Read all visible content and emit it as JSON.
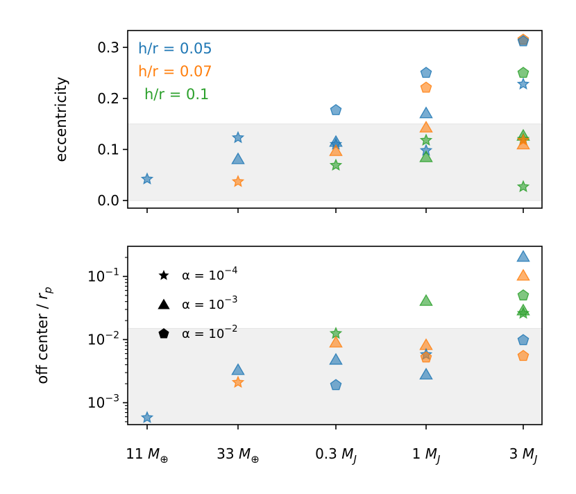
{
  "colors": {
    "blue": "#1f77b4",
    "orange": "#ff7f0e",
    "green": "#2ca02c",
    "band": "#f0f0f0"
  },
  "chart_data": [
    {
      "type": "scatter",
      "ylabel": "eccentricity",
      "yscale": "linear",
      "ylim": [
        -0.015,
        0.333
      ],
      "shaded_band": [
        0,
        0.15
      ],
      "yticks": [
        {
          "v": 0.0,
          "label": "0.0"
        },
        {
          "v": 0.1,
          "label": "0.1"
        },
        {
          "v": 0.2,
          "label": "0.2"
        },
        {
          "v": 0.3,
          "label": "0.3"
        }
      ],
      "color_legend": [
        {
          "text": "h/r = 0.05",
          "color": "#1f77b4"
        },
        {
          "text": "h/r = 0.07",
          "color": "#ff7f0e"
        },
        {
          "text": "h/r = 0.1",
          "color": "#2ca02c"
        }
      ],
      "points": [
        {
          "x": 0,
          "hr": 0.05,
          "alpha": "1e-4",
          "y": 0.042
        },
        {
          "x": 1,
          "hr": 0.05,
          "alpha": "1e-4",
          "y": 0.123
        },
        {
          "x": 1,
          "hr": 0.05,
          "alpha": "1e-3",
          "y": 0.081
        },
        {
          "x": 1,
          "hr": 0.07,
          "alpha": "1e-4",
          "y": 0.037
        },
        {
          "x": 2,
          "hr": 0.05,
          "alpha": "1e-2",
          "y": 0.177
        },
        {
          "x": 2,
          "hr": 0.05,
          "alpha": "1e-3",
          "y": 0.115
        },
        {
          "x": 2,
          "hr": 0.05,
          "alpha": "1e-4",
          "y": 0.11
        },
        {
          "x": 2,
          "hr": 0.07,
          "alpha": "1e-3",
          "y": 0.097
        },
        {
          "x": 2,
          "hr": 0.1,
          "alpha": "1e-4",
          "y": 0.069
        },
        {
          "x": 3,
          "hr": 0.05,
          "alpha": "1e-2",
          "y": 0.25
        },
        {
          "x": 3,
          "hr": 0.07,
          "alpha": "1e-2",
          "y": 0.221
        },
        {
          "x": 3,
          "hr": 0.05,
          "alpha": "1e-3",
          "y": 0.171
        },
        {
          "x": 3,
          "hr": 0.07,
          "alpha": "1e-3",
          "y": 0.143
        },
        {
          "x": 3,
          "hr": 0.1,
          "alpha": "1e-4",
          "y": 0.118
        },
        {
          "x": 3,
          "hr": 0.05,
          "alpha": "1e-4",
          "y": 0.098
        },
        {
          "x": 3,
          "hr": 0.1,
          "alpha": "1e-3",
          "y": 0.085
        },
        {
          "x": 4,
          "hr": 0.07,
          "alpha": "1e-2",
          "y": 0.315
        },
        {
          "x": 4,
          "hr": 0.05,
          "alpha": "1e-2",
          "y": 0.312
        },
        {
          "x": 4,
          "hr": 0.1,
          "alpha": "1e-2",
          "y": 0.25
        },
        {
          "x": 4,
          "hr": 0.05,
          "alpha": "1e-4",
          "y": 0.228
        },
        {
          "x": 4,
          "hr": 0.1,
          "alpha": "1e-3",
          "y": 0.127
        },
        {
          "x": 4,
          "hr": 0.1,
          "alpha": "1e-4",
          "y": 0.12
        },
        {
          "x": 4,
          "hr": 0.07,
          "alpha": "1e-4",
          "y": 0.118
        },
        {
          "x": 4,
          "hr": 0.07,
          "alpha": "1e-3",
          "y": 0.11
        },
        {
          "x": 4,
          "hr": 0.1,
          "alpha": "1e-4",
          "y": 0.027
        }
      ]
    },
    {
      "type": "scatter",
      "ylabel_main": "off center / ",
      "ylabel_var": "r",
      "ylabel_sub": "p",
      "yscale": "log",
      "ylim": [
        0.00045,
        0.3
      ],
      "shaded_band": [
        0.00045,
        0.015
      ],
      "yticks": [
        {
          "v": 0.001,
          "base": "10",
          "exp": "−3"
        },
        {
          "v": 0.01,
          "base": "10",
          "exp": "−2"
        },
        {
          "v": 0.1,
          "base": "10",
          "exp": "−1"
        }
      ],
      "marker_legend": [
        {
          "marker": "star",
          "prefix": "α = 10",
          "exp": "−4"
        },
        {
          "marker": "triangle",
          "prefix": "α = 10",
          "exp": "−3"
        },
        {
          "marker": "pentagon",
          "prefix": "α = 10",
          "exp": "−2"
        }
      ],
      "points": [
        {
          "x": 0,
          "hr": 0.05,
          "alpha": "1e-4",
          "y": 0.00058
        },
        {
          "x": 1,
          "hr": 0.05,
          "alpha": "1e-3",
          "y": 0.0033
        },
        {
          "x": 1,
          "hr": 0.07,
          "alpha": "1e-4",
          "y": 0.0021
        },
        {
          "x": 2,
          "hr": 0.1,
          "alpha": "1e-4",
          "y": 0.0125
        },
        {
          "x": 2,
          "hr": 0.07,
          "alpha": "1e-3",
          "y": 0.009
        },
        {
          "x": 2,
          "hr": 0.05,
          "alpha": "1e-3",
          "y": 0.0048
        },
        {
          "x": 2,
          "hr": 0.05,
          "alpha": "1e-2",
          "y": 0.0019
        },
        {
          "x": 3,
          "hr": 0.1,
          "alpha": "1e-3",
          "y": 0.041
        },
        {
          "x": 3,
          "hr": 0.07,
          "alpha": "1e-3",
          "y": 0.0082
        },
        {
          "x": 3,
          "hr": 0.05,
          "alpha": "1e-4",
          "y": 0.0058
        },
        {
          "x": 3,
          "hr": 0.07,
          "alpha": "1e-2",
          "y": 0.0052
        },
        {
          "x": 3,
          "hr": 0.05,
          "alpha": "1e-3",
          "y": 0.0028
        },
        {
          "x": 4,
          "hr": 0.05,
          "alpha": "1e-3",
          "y": 0.205
        },
        {
          "x": 4,
          "hr": 0.07,
          "alpha": "1e-3",
          "y": 0.103
        },
        {
          "x": 4,
          "hr": 0.1,
          "alpha": "1e-2",
          "y": 0.05
        },
        {
          "x": 4,
          "hr": 0.1,
          "alpha": "1e-3",
          "y": 0.029
        },
        {
          "x": 4,
          "hr": 0.1,
          "alpha": "1e-4",
          "y": 0.026
        },
        {
          "x": 4,
          "hr": 0.05,
          "alpha": "1e-2",
          "y": 0.0098
        },
        {
          "x": 4,
          "hr": 0.07,
          "alpha": "1e-2",
          "y": 0.0055
        }
      ]
    }
  ],
  "x_categories": [
    {
      "num": "11 ",
      "var": "M",
      "sub": "⊕"
    },
    {
      "num": "33 ",
      "var": "M",
      "sub": "⊕"
    },
    {
      "num": "0.3 ",
      "var": "M",
      "sub": "J"
    },
    {
      "num": "1 ",
      "var": "M",
      "sub": "J"
    },
    {
      "num": "3 ",
      "var": "M",
      "sub": "J"
    }
  ]
}
